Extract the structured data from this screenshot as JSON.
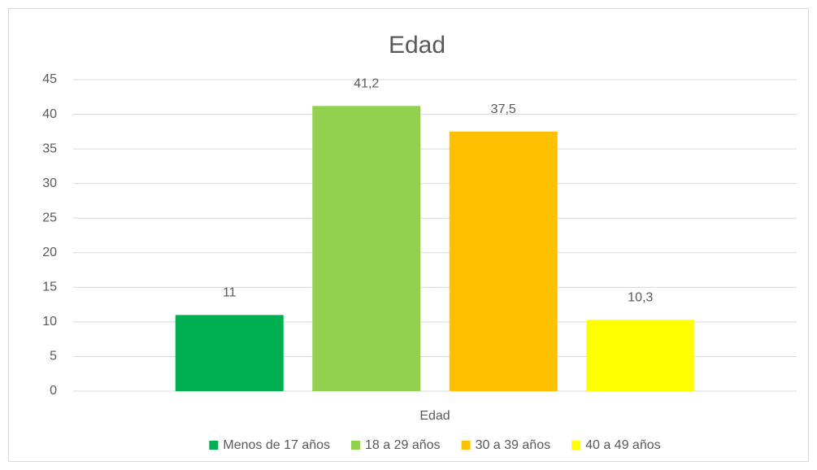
{
  "chart_data": {
    "type": "bar",
    "title": "Edad",
    "categories": [
      "Edad"
    ],
    "series": [
      {
        "name": "Menos de 17 años",
        "color": "#00b050",
        "values": [
          11
        ]
      },
      {
        "name": "18 a 29 años",
        "color": "#92d050",
        "values": [
          41.2
        ],
        "value_labels": [
          "41,2"
        ]
      },
      {
        "name": "30 a 39 años",
        "color": "#ffc000",
        "values": [
          37.5
        ],
        "value_labels": [
          "37,5"
        ]
      },
      {
        "name": "40 a 49 años",
        "color": "#ffff00",
        "values": [
          10.3
        ],
        "value_labels": [
          "10,3"
        ]
      }
    ],
    "ylim": [
      0,
      45
    ],
    "yticks": [
      0,
      5,
      10,
      15,
      20,
      25,
      30,
      35,
      40,
      45
    ],
    "grid": true,
    "legend": "bottom"
  }
}
